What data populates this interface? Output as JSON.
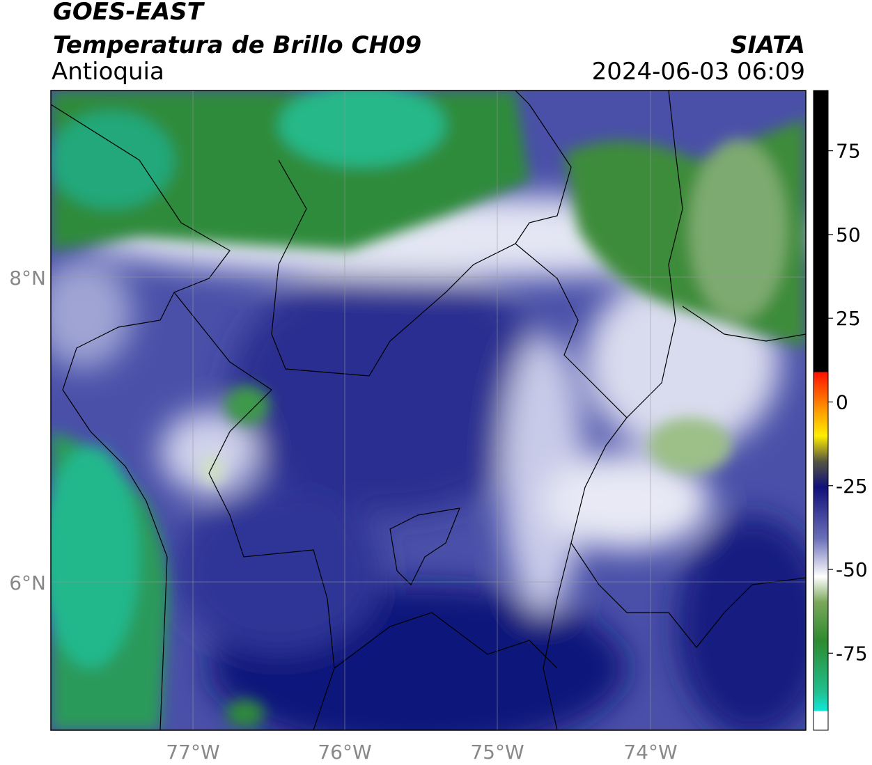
{
  "header": {
    "title": "GOES-EAST",
    "subtitle": "Temperatura de Brillo CH09",
    "region": "Antioquia",
    "source": "SIATA",
    "datetime": "2024-06-03 06:09"
  },
  "axes": {
    "latitude_labels": [
      "8°N",
      "6°N"
    ],
    "longitude_labels": [
      "77°W",
      "76°W",
      "75°W",
      "74°W"
    ]
  },
  "colorbar": {
    "range": [
      -98,
      93
    ],
    "ticks": [
      75,
      50,
      25,
      0,
      -25,
      -50,
      -75
    ]
  }
}
